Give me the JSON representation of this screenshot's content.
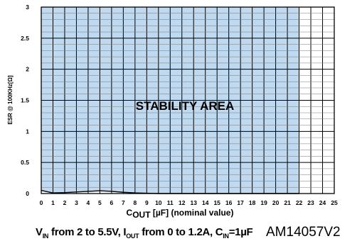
{
  "chart_data": {
    "type": "area",
    "x_ticks": [
      "0",
      "1",
      "2",
      "3",
      "4",
      "5",
      "6",
      "7",
      "8",
      "9",
      "10",
      "11",
      "12",
      "13",
      "14",
      "15",
      "16",
      "17",
      "18",
      "19",
      "20",
      "21",
      "22",
      "23",
      "24",
      "25"
    ],
    "y_ticks": [
      "0",
      "0.5",
      "1",
      "1.5",
      "2",
      "2.5",
      "3"
    ],
    "xlim": [
      0,
      25
    ],
    "ylim": [
      0,
      3
    ],
    "ylabel": "ESR @ 100KHz[Ω]",
    "xlabel_main": "C",
    "xlabel_sub": "OUT",
    "xlabel_rest": " [µF] (nominal value)",
    "region_label": "STABILITY AREA",
    "region": {
      "x_range": [
        0,
        22
      ],
      "y_max": 3,
      "lower_boundary": {
        "x": [
          0,
          1,
          2,
          3,
          4,
          5,
          6,
          7,
          8,
          9,
          10,
          22
        ],
        "y": [
          0.05,
          0.01,
          0.015,
          0.025,
          0.035,
          0.045,
          0.035,
          0.02,
          0.01,
          0.005,
          0.0,
          0.0
        ]
      },
      "fill_color": "#bed9f0",
      "line_color": "#000000"
    },
    "grid": true
  },
  "caption": {
    "v": "V",
    "v_sub": "IN",
    "part1": " from 2 to 5.5V, I",
    "i_sub": "OUT",
    "part2": " from 0 to 1.2A, C",
    "c_sub": "IN",
    "part3": "=1µF",
    "code": "AM14057V2"
  }
}
